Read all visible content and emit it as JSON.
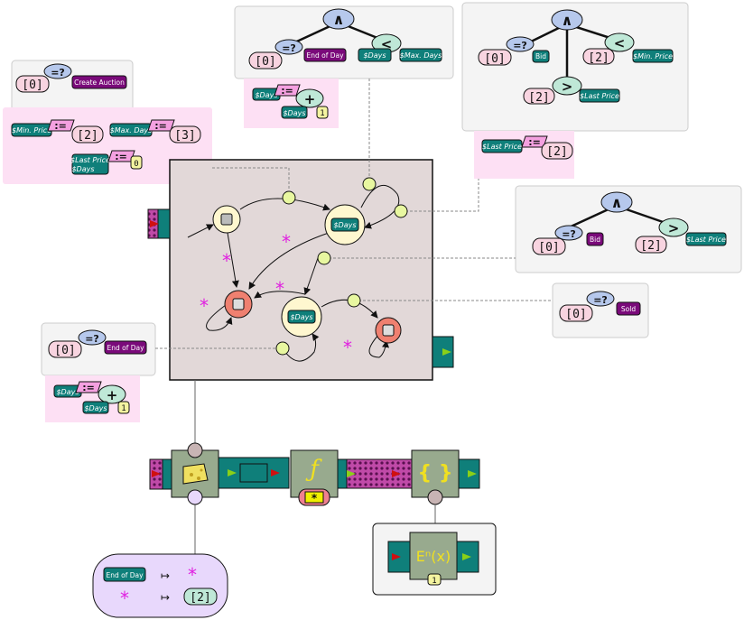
{
  "labels": {
    "create_auction": "Create Auction",
    "end_of_day": "End of Day",
    "bid": "Bid",
    "sold": "Sold",
    "days": "$Days",
    "max_days": "$Max. Days",
    "min_price": "$Min. Price",
    "last_price": "$Last Price"
  },
  "symbols": {
    "zero": "[0]",
    "two": "[2]",
    "three": "[3]",
    "one": "1",
    "zero_small": "0",
    "and": "∧",
    "eq_q": "=?",
    "assign": ":=",
    "lt": "<",
    "gt": ">",
    "plus": "+",
    "star": "*",
    "func": "ƒ",
    "braces": "{ }",
    "en": "Eⁿ(x)",
    "mapsto": "↦"
  },
  "colors": {
    "teal": "#0f7f7a",
    "purple": "#7a0a7a",
    "pink_bg": "#fde0f4",
    "state_fill": "#fff7cf",
    "final_fill": "#ef8070",
    "guard_fill": "#e8f7a0",
    "machine_bg": "#e2d8d8",
    "gray_box": "#f4f4f4",
    "node_blue": "#b6c8ec",
    "node_mint": "#bfe8d7",
    "comp_green": "#98aa8e",
    "lavender": "#e8d8fc",
    "star": "#e020e0"
  }
}
